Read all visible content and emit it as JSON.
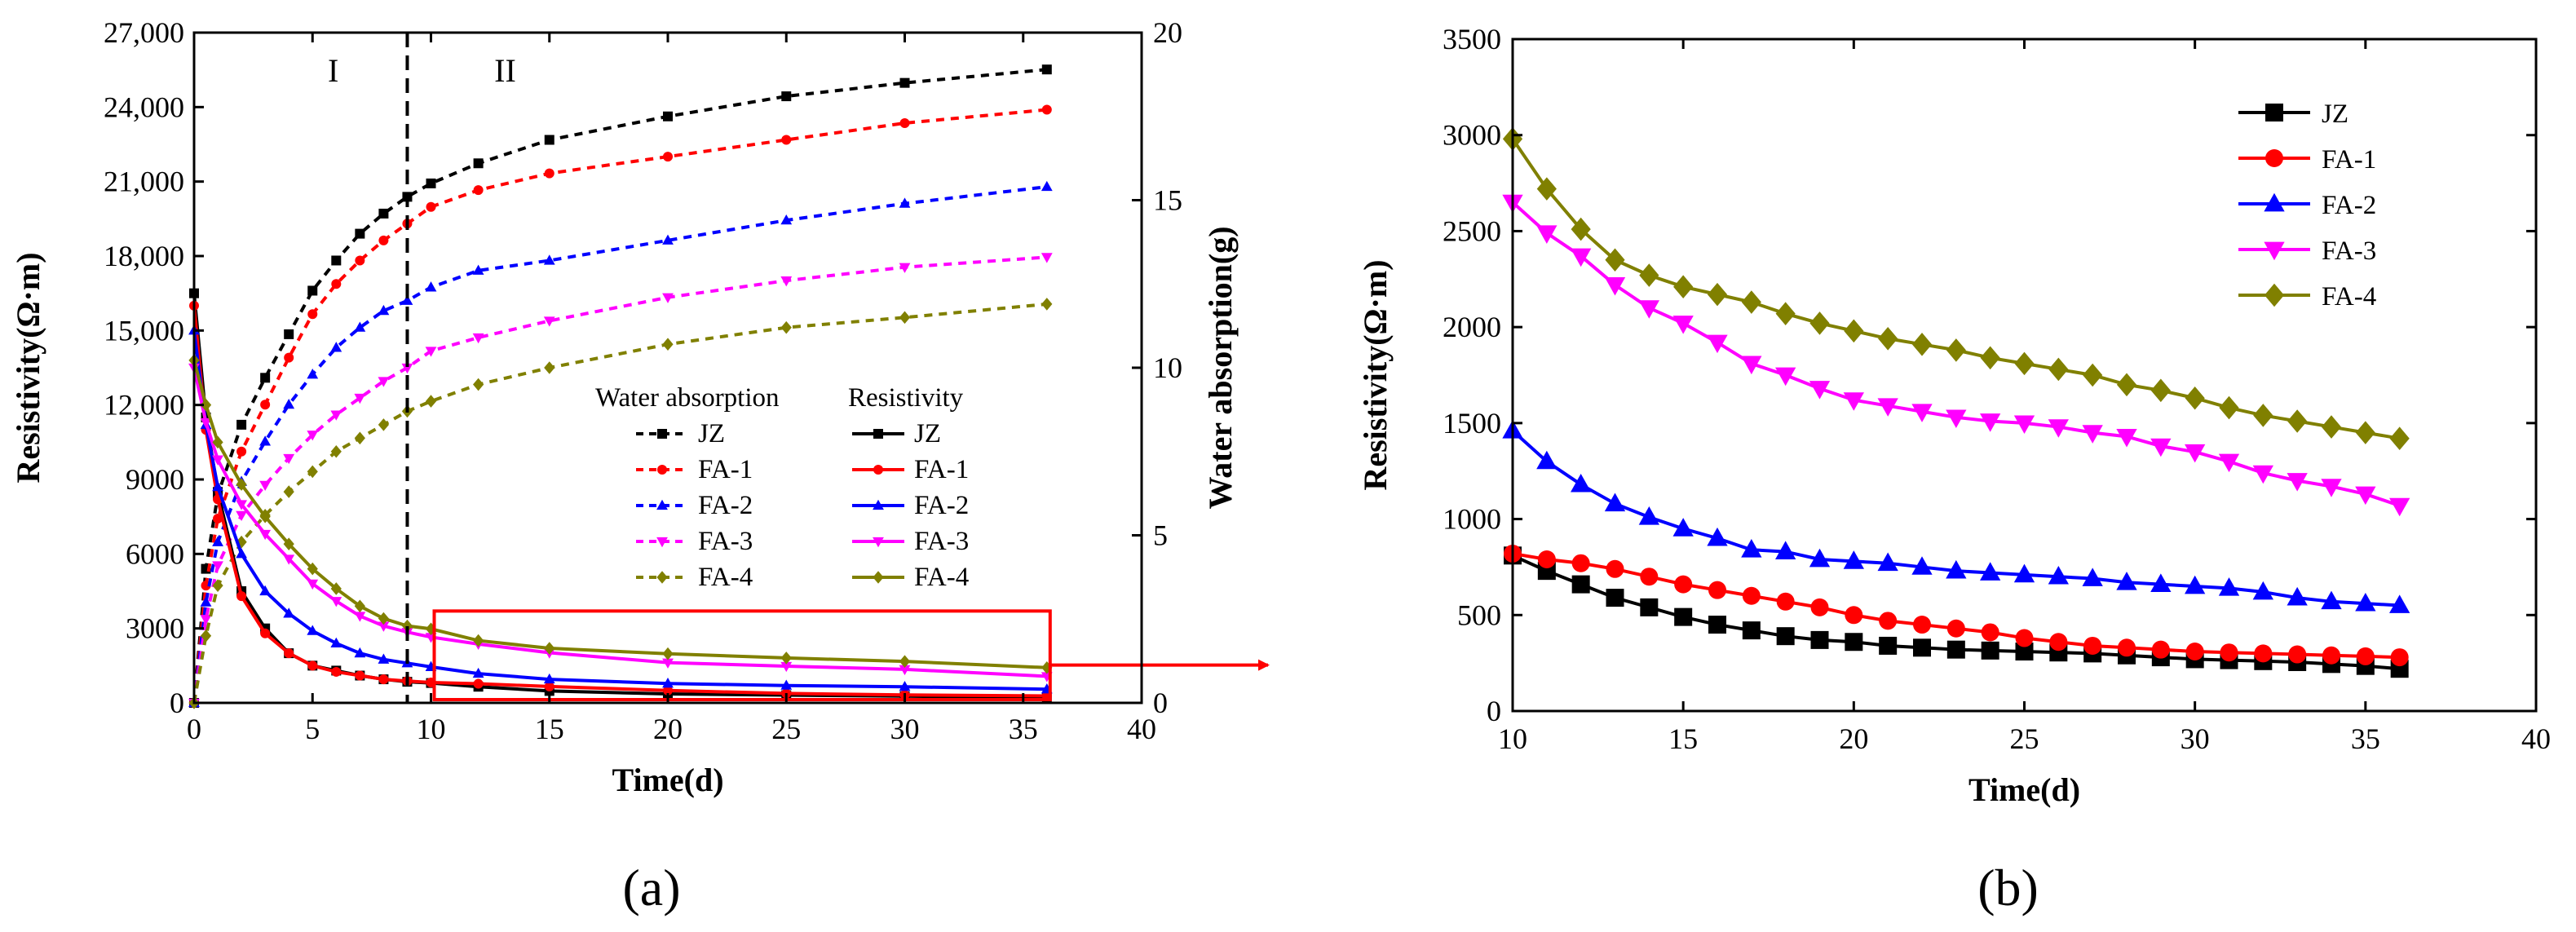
{
  "panels": {
    "a": {
      "label": "(a)",
      "xlabel": "Time(d)",
      "ylabel_left": "Resistivity(Ω·m)",
      "ylabel_right": "Water absorption(g)",
      "region_labels": [
        "I",
        "II"
      ],
      "region_divider_x": 9,
      "legend_water_title": "Water absorption",
      "legend_resistivity_title": "Resistivity"
    },
    "b": {
      "label": "(b)",
      "xlabel": "Time(d)",
      "ylabel": "Resistivity(Ω·m)"
    }
  },
  "colors": {
    "JZ": "#000000",
    "FA-1": "#ff0000",
    "FA-2": "#0000ff",
    "FA-3": "#ff00ff",
    "FA-4": "#808000",
    "highlight_box": "#ff0000"
  },
  "chart_data": [
    {
      "type": "line",
      "panel": "a",
      "xlim": [
        0,
        40
      ],
      "x_ticks": [
        0,
        5,
        10,
        15,
        20,
        25,
        30,
        35,
        40
      ],
      "ylim_left": [
        0,
        27000
      ],
      "y_ticks_left": [
        "0",
        "3000",
        "6000",
        "9000",
        "12,000",
        "15,000",
        "18,000",
        "21,000",
        "24,000",
        "27,000"
      ],
      "ylim_right": [
        0,
        20
      ],
      "y_ticks_right": [
        "0",
        "5",
        "10",
        "15",
        "20"
      ],
      "highlight_box": {
        "x": [
          10,
          36
        ],
        "y": [
          0,
          3700
        ]
      },
      "water_absorption_series": [
        {
          "name": "JZ",
          "axis": "right",
          "x": [
            0,
            0.5,
            1,
            2,
            3,
            4,
            5,
            6,
            7,
            8,
            9,
            10,
            12,
            15,
            20,
            25,
            30,
            36
          ],
          "values": [
            0,
            4,
            6.2,
            8.3,
            9.7,
            11,
            12.3,
            13.2,
            14,
            14.6,
            15.1,
            15.5,
            16.1,
            16.8,
            17.5,
            18.1,
            18.5,
            18.9
          ]
        },
        {
          "name": "FA-1",
          "axis": "right",
          "x": [
            0,
            0.5,
            1,
            2,
            3,
            4,
            5,
            6,
            7,
            8,
            9,
            10,
            12,
            15,
            20,
            25,
            30,
            36
          ],
          "values": [
            0,
            3.5,
            5.5,
            7.5,
            8.9,
            10.3,
            11.6,
            12.5,
            13.2,
            13.8,
            14.3,
            14.8,
            15.3,
            15.8,
            16.3,
            16.8,
            17.3,
            17.7
          ]
        },
        {
          "name": "FA-2",
          "axis": "right",
          "x": [
            0,
            0.5,
            1,
            2,
            3,
            4,
            5,
            6,
            7,
            8,
            9,
            10,
            12,
            15,
            20,
            25,
            30,
            36
          ],
          "values": [
            0,
            3,
            4.8,
            6.6,
            7.8,
            8.9,
            9.8,
            10.6,
            11.2,
            11.7,
            12,
            12.4,
            12.9,
            13.2,
            13.8,
            14.4,
            14.9,
            15.4
          ]
        },
        {
          "name": "FA-3",
          "axis": "right",
          "x": [
            0,
            0.5,
            1,
            2,
            3,
            4,
            5,
            6,
            7,
            8,
            9,
            10,
            12,
            15,
            20,
            25,
            30,
            36
          ],
          "values": [
            0,
            2.5,
            4.1,
            5.6,
            6.5,
            7.3,
            8,
            8.6,
            9.1,
            9.6,
            10,
            10.5,
            10.9,
            11.4,
            12.1,
            12.6,
            13,
            13.3
          ]
        },
        {
          "name": "FA-4",
          "axis": "right",
          "x": [
            0,
            0.5,
            1,
            2,
            3,
            4,
            5,
            6,
            7,
            8,
            9,
            10,
            12,
            15,
            20,
            25,
            30,
            36
          ],
          "values": [
            0,
            2,
            3.5,
            4.8,
            5.6,
            6.3,
            6.9,
            7.5,
            7.9,
            8.3,
            8.7,
            9,
            9.5,
            10,
            10.7,
            11.2,
            11.5,
            11.9
          ]
        }
      ],
      "resistivity_series": [
        {
          "name": "JZ",
          "axis": "left",
          "x": [
            0,
            0.5,
            1,
            2,
            3,
            4,
            5,
            6,
            7,
            8,
            9,
            10,
            12,
            15,
            20,
            25,
            30,
            36
          ],
          "values": [
            16500,
            11500,
            8500,
            4500,
            3000,
            2000,
            1500,
            1300,
            1100,
            950,
            850,
            800,
            650,
            480,
            360,
            310,
            270,
            220
          ]
        },
        {
          "name": "FA-1",
          "axis": "left",
          "x": [
            0,
            0.5,
            1,
            2,
            3,
            4,
            5,
            6,
            7,
            8,
            9,
            10,
            12,
            15,
            20,
            25,
            30,
            36
          ],
          "values": [
            16000,
            11000,
            8200,
            4300,
            2800,
            2000,
            1500,
            1250,
            1100,
            950,
            880,
            820,
            770,
            660,
            500,
            380,
            320,
            280
          ]
        },
        {
          "name": "FA-2",
          "axis": "left",
          "x": [
            0,
            0.5,
            1,
            2,
            3,
            4,
            5,
            6,
            7,
            8,
            9,
            10,
            12,
            15,
            20,
            25,
            30,
            36
          ],
          "values": [
            15000,
            11200,
            8700,
            6000,
            4500,
            3600,
            2900,
            2400,
            2000,
            1750,
            1600,
            1450,
            1180,
            950,
            780,
            700,
            650,
            550
          ]
        },
        {
          "name": "FA-3",
          "axis": "left",
          "x": [
            0,
            0.5,
            1,
            2,
            3,
            4,
            5,
            6,
            7,
            8,
            9,
            10,
            12,
            15,
            20,
            25,
            30,
            36
          ],
          "values": [
            13500,
            11300,
            9800,
            8000,
            6800,
            5800,
            4800,
            4100,
            3500,
            3100,
            2850,
            2650,
            2370,
            2020,
            1620,
            1480,
            1350,
            1070
          ]
        },
        {
          "name": "FA-4",
          "axis": "left",
          "x": [
            0,
            0.5,
            1,
            2,
            3,
            4,
            5,
            6,
            7,
            8,
            9,
            10,
            12,
            15,
            20,
            25,
            30,
            36
          ],
          "values": [
            13800,
            12000,
            10500,
            8800,
            7500,
            6400,
            5400,
            4600,
            3900,
            3400,
            3100,
            2980,
            2510,
            2200,
            1980,
            1810,
            1670,
            1420
          ]
        }
      ]
    },
    {
      "type": "line",
      "panel": "b",
      "xlim": [
        10,
        40
      ],
      "x_ticks": [
        10,
        15,
        20,
        25,
        30,
        35,
        40
      ],
      "ylim": [
        0,
        3500
      ],
      "y_ticks": [
        0,
        500,
        1000,
        1500,
        2000,
        2500,
        3000,
        3500
      ],
      "series": [
        {
          "name": "JZ",
          "marker": "square",
          "x": [
            10,
            11,
            12,
            13,
            14,
            15,
            16,
            17,
            18,
            19,
            20,
            21,
            22,
            23,
            24,
            25,
            26,
            27,
            28,
            29,
            30,
            31,
            32,
            33,
            34,
            35,
            36
          ],
          "values": [
            810,
            730,
            660,
            590,
            540,
            490,
            450,
            420,
            390,
            370,
            360,
            340,
            330,
            320,
            315,
            310,
            305,
            300,
            290,
            280,
            270,
            265,
            260,
            255,
            245,
            235,
            220
          ]
        },
        {
          "name": "FA-1",
          "marker": "circle",
          "x": [
            10,
            11,
            12,
            13,
            14,
            15,
            16,
            17,
            18,
            19,
            20,
            21,
            22,
            23,
            24,
            25,
            26,
            27,
            28,
            29,
            30,
            31,
            32,
            33,
            34,
            35,
            36
          ],
          "values": [
            820,
            790,
            770,
            740,
            700,
            660,
            630,
            600,
            570,
            540,
            500,
            470,
            450,
            430,
            410,
            380,
            360,
            340,
            330,
            320,
            310,
            305,
            300,
            295,
            290,
            285,
            280
          ]
        },
        {
          "name": "FA-2",
          "marker": "triangle-up",
          "x": [
            10,
            11,
            12,
            13,
            14,
            15,
            16,
            17,
            18,
            19,
            20,
            21,
            22,
            23,
            24,
            25,
            26,
            27,
            28,
            29,
            30,
            31,
            32,
            33,
            34,
            35,
            36
          ],
          "values": [
            1460,
            1300,
            1180,
            1080,
            1010,
            950,
            900,
            840,
            830,
            790,
            780,
            770,
            750,
            730,
            720,
            710,
            700,
            690,
            670,
            660,
            650,
            640,
            620,
            590,
            570,
            560,
            550
          ]
        },
        {
          "name": "FA-3",
          "marker": "triangle-down",
          "x": [
            10,
            11,
            12,
            13,
            14,
            15,
            16,
            17,
            18,
            19,
            20,
            21,
            22,
            23,
            24,
            25,
            26,
            27,
            28,
            29,
            30,
            31,
            32,
            33,
            34,
            35,
            36
          ],
          "values": [
            2650,
            2490,
            2370,
            2220,
            2100,
            2020,
            1920,
            1810,
            1750,
            1680,
            1620,
            1590,
            1560,
            1530,
            1510,
            1500,
            1480,
            1450,
            1430,
            1380,
            1350,
            1300,
            1240,
            1200,
            1170,
            1130,
            1070
          ]
        },
        {
          "name": "FA-4",
          "marker": "diamond",
          "x": [
            10,
            11,
            12,
            13,
            14,
            15,
            16,
            17,
            18,
            19,
            20,
            21,
            22,
            23,
            24,
            25,
            26,
            27,
            28,
            29,
            30,
            31,
            32,
            33,
            34,
            35,
            36
          ],
          "values": [
            2980,
            2720,
            2510,
            2350,
            2270,
            2210,
            2170,
            2130,
            2070,
            2020,
            1980,
            1940,
            1910,
            1880,
            1840,
            1810,
            1780,
            1750,
            1700,
            1670,
            1630,
            1580,
            1540,
            1510,
            1480,
            1450,
            1420
          ]
        }
      ]
    }
  ]
}
